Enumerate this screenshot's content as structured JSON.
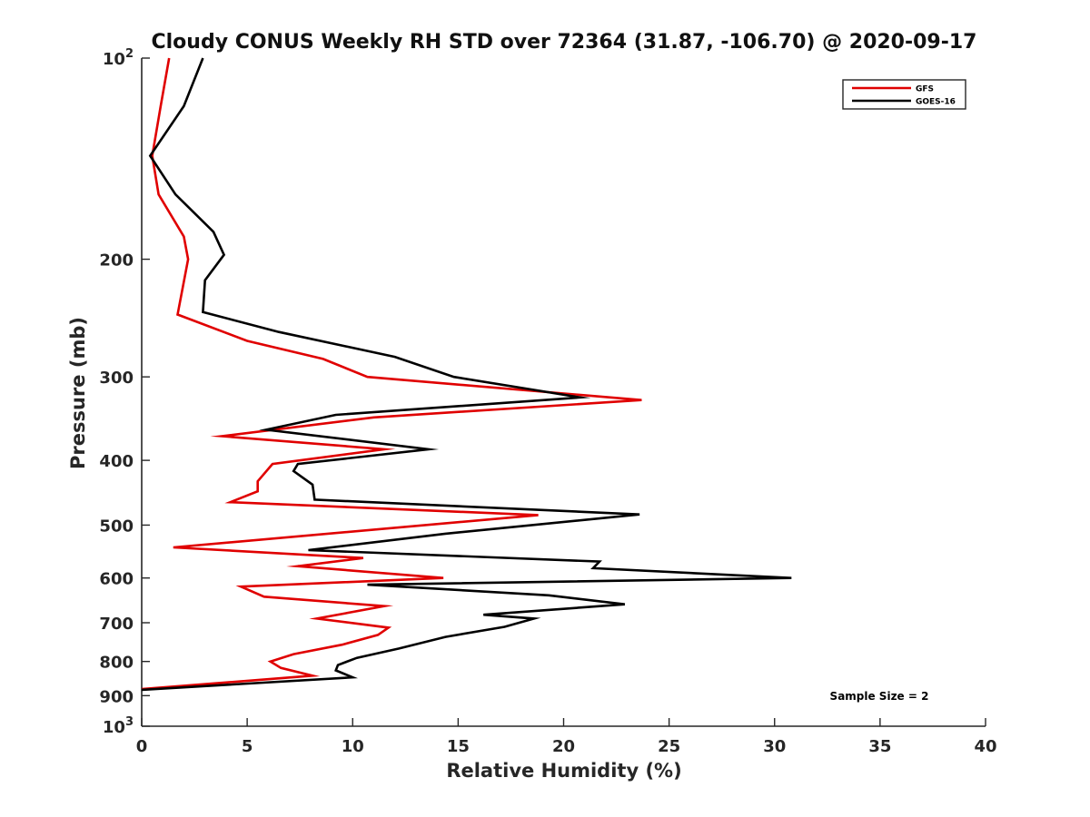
{
  "chart_data": {
    "type": "line",
    "title": "Cloudy CONUS Weekly RH STD over 72364 (31.87, -106.70) @ 2020-09-17",
    "xlabel": "Relative Humidity (%)",
    "ylabel": "Pressure (mb)",
    "xlim": [
      0,
      40
    ],
    "ylim": [
      100,
      1000
    ],
    "y_scale": "log",
    "y_reversed": true,
    "x_ticks": [
      {
        "value": 0,
        "label": "0"
      },
      {
        "value": 5,
        "label": "5"
      },
      {
        "value": 10,
        "label": "10"
      },
      {
        "value": 15,
        "label": "15"
      },
      {
        "value": 20,
        "label": "20"
      },
      {
        "value": 25,
        "label": "25"
      },
      {
        "value": 30,
        "label": "30"
      },
      {
        "value": 35,
        "label": "35"
      },
      {
        "value": 40,
        "label": "40"
      }
    ],
    "y_ticks": [
      {
        "value": 100,
        "label": "10",
        "sup": "2"
      },
      {
        "value": 200,
        "label": "200",
        "sup": ""
      },
      {
        "value": 300,
        "label": "300",
        "sup": ""
      },
      {
        "value": 400,
        "label": "400",
        "sup": ""
      },
      {
        "value": 500,
        "label": "500",
        "sup": ""
      },
      {
        "value": 600,
        "label": "600",
        "sup": ""
      },
      {
        "value": 700,
        "label": "700",
        "sup": ""
      },
      {
        "value": 800,
        "label": "800",
        "sup": ""
      },
      {
        "value": 900,
        "label": "900",
        "sup": ""
      },
      {
        "value": 1000,
        "label": "10",
        "sup": "3"
      }
    ],
    "legend_position": "top-right",
    "grid": false,
    "series": [
      {
        "name": "GFS",
        "color": "#e00000",
        "points": [
          [
            1.3,
            100
          ],
          [
            0.9,
            118
          ],
          [
            0.5,
            140
          ],
          [
            0.8,
            160
          ],
          [
            2.0,
            185
          ],
          [
            2.2,
            200
          ],
          [
            1.7,
            242
          ],
          [
            5.0,
            265
          ],
          [
            8.6,
            282
          ],
          [
            10.7,
            300
          ],
          [
            23.7,
            325
          ],
          [
            11.0,
            345
          ],
          [
            3.8,
            368
          ],
          [
            11.5,
            385
          ],
          [
            6.2,
            405
          ],
          [
            5.5,
            430
          ],
          [
            5.5,
            445
          ],
          [
            4.2,
            462
          ],
          [
            18.8,
            483
          ],
          [
            1.5,
            540
          ],
          [
            10.5,
            560
          ],
          [
            7.4,
            576
          ],
          [
            14.3,
            600
          ],
          [
            4.7,
            618
          ],
          [
            5.8,
            640
          ],
          [
            11.5,
            661
          ],
          [
            8.3,
            690
          ],
          [
            11.7,
            712
          ],
          [
            11.2,
            730
          ],
          [
            9.5,
            755
          ],
          [
            7.2,
            780
          ],
          [
            6.1,
            800
          ],
          [
            6.6,
            818
          ],
          [
            8.1,
            840
          ],
          [
            0.0,
            880
          ]
        ]
      },
      {
        "name": "GOES-16",
        "color": "#000000",
        "points": [
          [
            2.9,
            100
          ],
          [
            2.0,
            118
          ],
          [
            0.4,
            140
          ],
          [
            1.6,
            160
          ],
          [
            3.4,
            182
          ],
          [
            3.9,
            197
          ],
          [
            3.0,
            215
          ],
          [
            2.9,
            240
          ],
          [
            6.5,
            257
          ],
          [
            12.0,
            280
          ],
          [
            14.8,
            300
          ],
          [
            20.8,
            322
          ],
          [
            9.2,
            342
          ],
          [
            5.9,
            360
          ],
          [
            13.6,
            385
          ],
          [
            7.4,
            405
          ],
          [
            7.2,
            415
          ],
          [
            8.1,
            435
          ],
          [
            8.2,
            458
          ],
          [
            23.6,
            482
          ],
          [
            14.4,
            515
          ],
          [
            7.9,
            545
          ],
          [
            21.7,
            567
          ],
          [
            21.4,
            580
          ],
          [
            30.8,
            600
          ],
          [
            10.7,
            614
          ],
          [
            19.3,
            637
          ],
          [
            22.9,
            657
          ],
          [
            16.2,
            681
          ],
          [
            18.6,
            690
          ],
          [
            17.2,
            710
          ],
          [
            14.4,
            735
          ],
          [
            12.2,
            765
          ],
          [
            10.2,
            790
          ],
          [
            9.3,
            810
          ],
          [
            9.2,
            825
          ],
          [
            10.0,
            845
          ],
          [
            0.0,
            882
          ]
        ]
      }
    ],
    "annotations": [
      {
        "text": "Sample Size = 2",
        "x": 37,
        "y": 900
      }
    ]
  }
}
